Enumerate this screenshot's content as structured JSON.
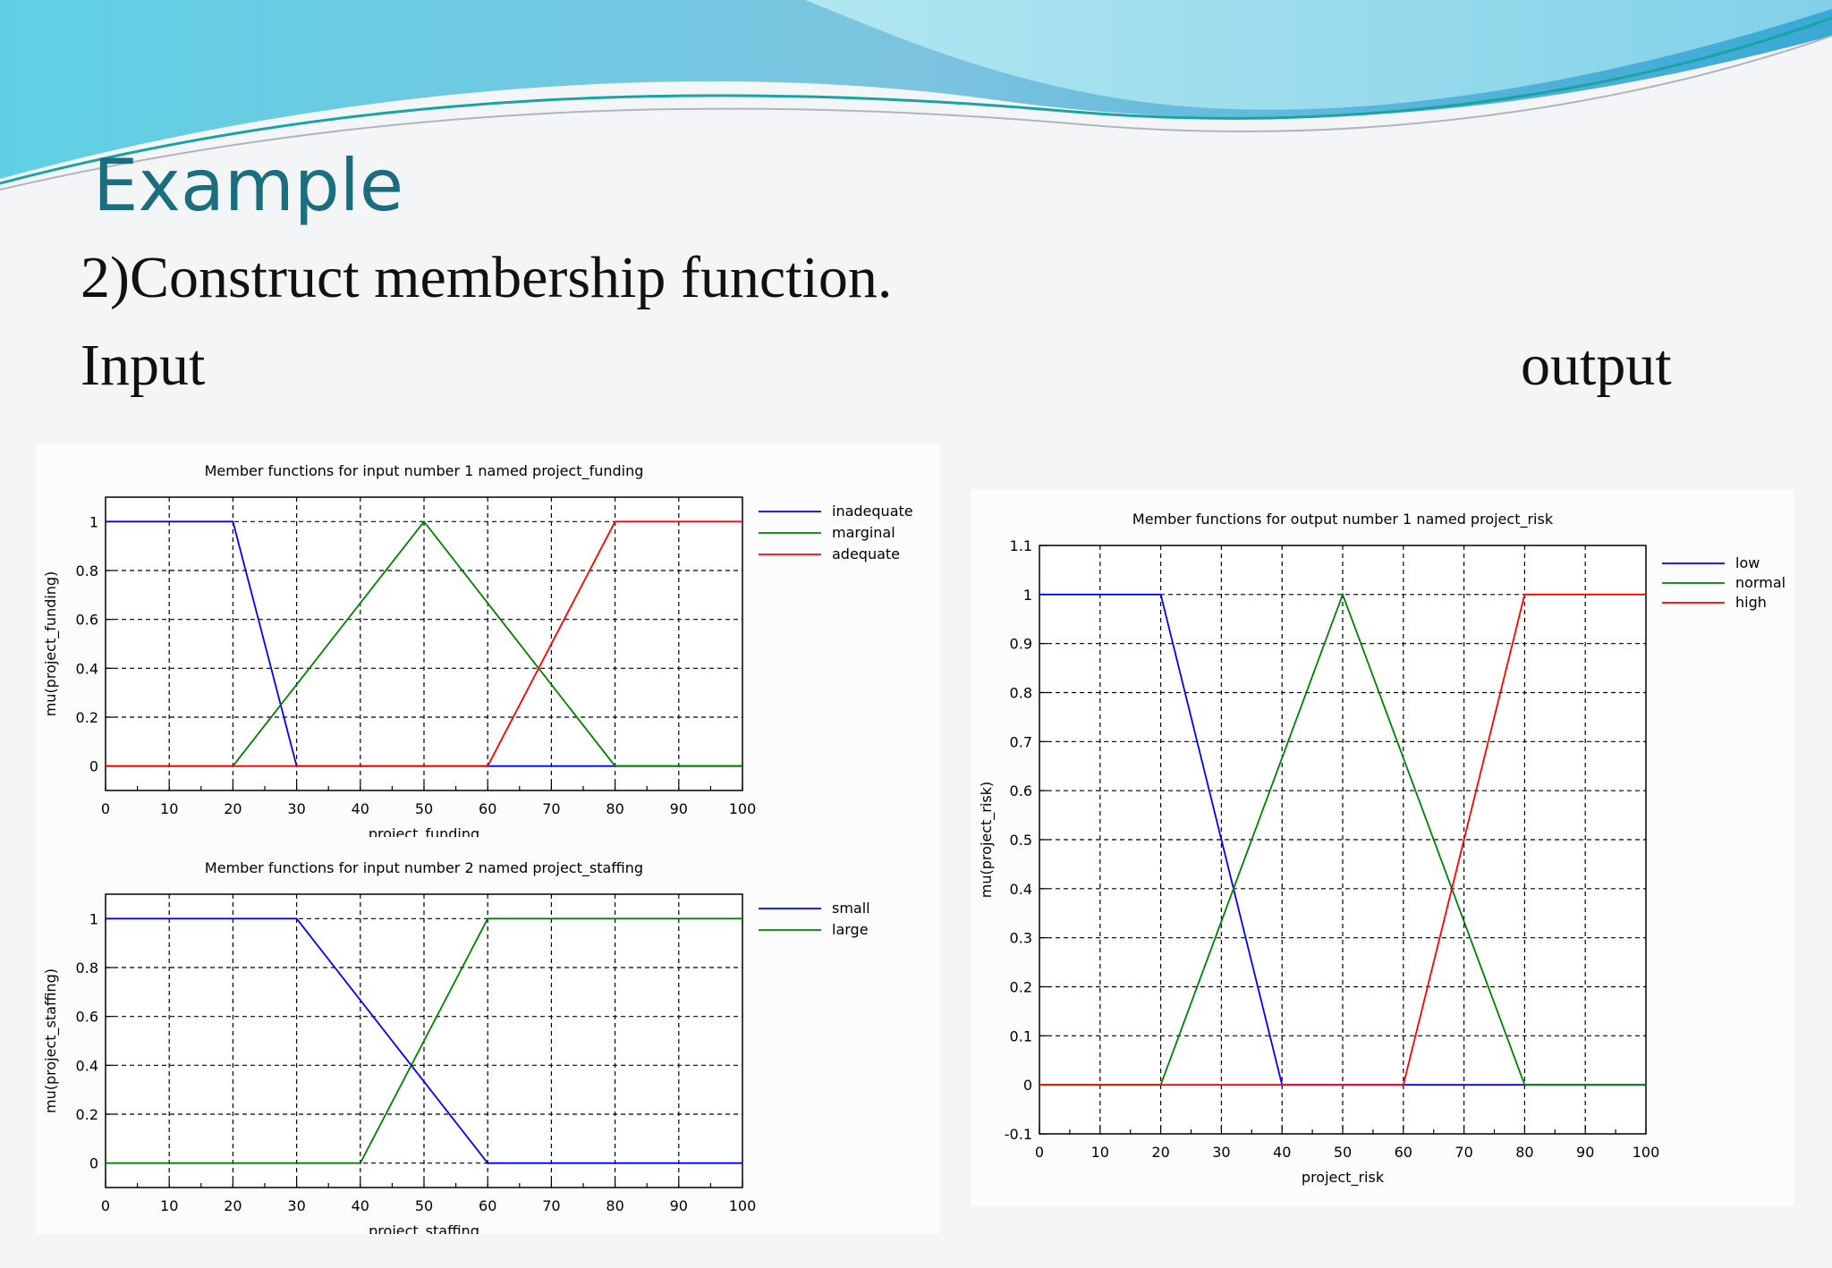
{
  "slide": {
    "title": "Example",
    "subtitle": "2)Construct membership function.",
    "input_label": "Input",
    "output_label": "output"
  },
  "colors": {
    "title": "#1a6e7e",
    "blue": "#0000ff",
    "green": "#008000",
    "red": "#ff0000"
  },
  "chart_data": [
    {
      "type": "line",
      "title": "Member functions for input number 1 named project_funding",
      "xlabel": "project_funding",
      "ylabel": "mu(project_funding)",
      "xlim": [
        0,
        100
      ],
      "ylim": [
        -0.1,
        1.1
      ],
      "xticks": [
        0,
        10,
        20,
        30,
        40,
        50,
        60,
        70,
        80,
        90,
        100
      ],
      "yticks": [
        0,
        0.2,
        0.4,
        0.6,
        0.8,
        1
      ],
      "ytick_labels": [
        "0",
        "0.2",
        "0.4",
        "0.6",
        "0.8",
        "1"
      ],
      "grid": true,
      "legend_position": "right",
      "series": [
        {
          "name": "inadequate",
          "color": "#0000ff",
          "x": [
            0,
            20,
            30,
            100
          ],
          "y": [
            1,
            1,
            0,
            0
          ]
        },
        {
          "name": "marginal",
          "color": "#008000",
          "x": [
            0,
            20,
            50,
            80,
            100
          ],
          "y": [
            0,
            0,
            1,
            0,
            0
          ]
        },
        {
          "name": "adequate",
          "color": "#ff0000",
          "x": [
            0,
            60,
            80,
            100
          ],
          "y": [
            0,
            0,
            1,
            1
          ]
        }
      ]
    },
    {
      "type": "line",
      "title": "Member functions for input number 2 named project_staffing",
      "xlabel": "project_staffing",
      "ylabel": "mu(project_staffing)",
      "xlim": [
        0,
        100
      ],
      "ylim": [
        -0.1,
        1.1
      ],
      "xticks": [
        0,
        10,
        20,
        30,
        40,
        50,
        60,
        70,
        80,
        90,
        100
      ],
      "yticks": [
        0,
        0.2,
        0.4,
        0.6,
        0.8,
        1
      ],
      "ytick_labels": [
        "0",
        "0.2",
        "0.4",
        "0.6",
        "0.8",
        "1"
      ],
      "grid": true,
      "legend_position": "right",
      "series": [
        {
          "name": "small",
          "color": "#0000ff",
          "x": [
            0,
            30,
            60,
            100
          ],
          "y": [
            1,
            1,
            0,
            0
          ]
        },
        {
          "name": "large",
          "color": "#008000",
          "x": [
            0,
            40,
            60,
            100
          ],
          "y": [
            0,
            0,
            1,
            1
          ]
        }
      ]
    },
    {
      "type": "line",
      "title": "Member functions for output number 1 named project_risk",
      "xlabel": "project_risk",
      "ylabel": "mu(project_risk)",
      "xlim": [
        0,
        100
      ],
      "ylim": [
        -0.1,
        1.1
      ],
      "xticks": [
        0,
        10,
        20,
        30,
        40,
        50,
        60,
        70,
        80,
        90,
        100
      ],
      "yticks": [
        -0.1,
        0,
        0.1,
        0.2,
        0.3,
        0.4,
        0.5,
        0.6,
        0.7,
        0.8,
        0.9,
        1,
        1.1
      ],
      "ytick_labels": [
        "-0.1",
        "0",
        "0.1",
        "0.2",
        "0.3",
        "0.4",
        "0.5",
        "0.6",
        "0.7",
        "0.8",
        "0.9",
        "1",
        "1.1"
      ],
      "grid": true,
      "legend_position": "right",
      "series": [
        {
          "name": "low",
          "color": "#0000ff",
          "x": [
            0,
            20,
            40,
            100
          ],
          "y": [
            1,
            1,
            0,
            0
          ]
        },
        {
          "name": "normal",
          "color": "#008000",
          "x": [
            0,
            20,
            50,
            80,
            100
          ],
          "y": [
            0,
            0,
            1,
            0,
            0
          ]
        },
        {
          "name": "high",
          "color": "#ff0000",
          "x": [
            0,
            60,
            80,
            100
          ],
          "y": [
            0,
            0,
            1,
            1
          ]
        }
      ]
    }
  ]
}
